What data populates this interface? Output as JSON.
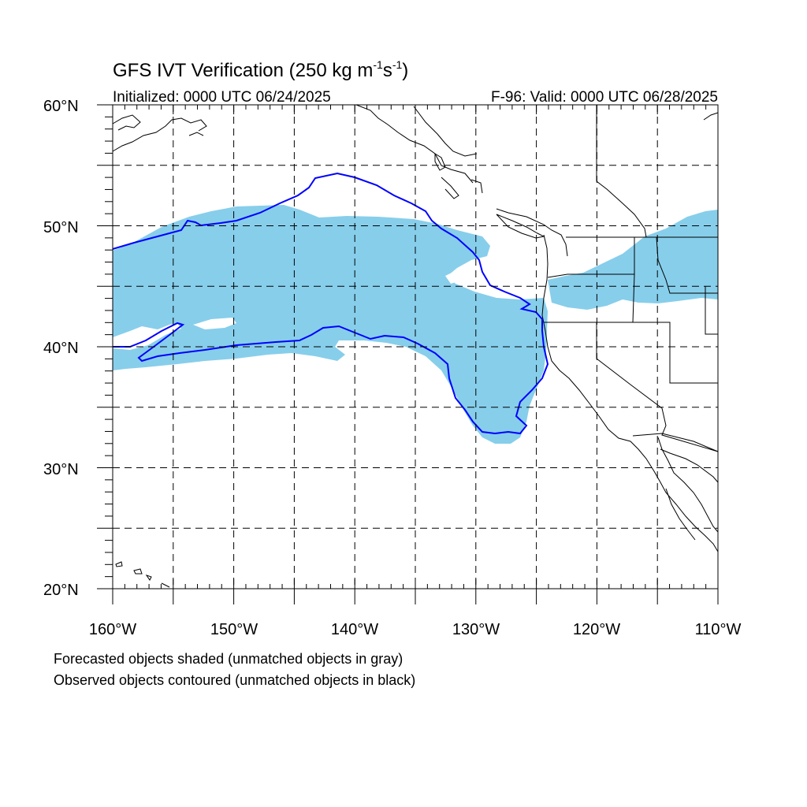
{
  "title": "GFS IVT Verification (250 kg m",
  "title_sup1": "-1",
  "title_mid": "s",
  "title_sup2": "-1",
  "title_end": ")",
  "init_label": "Initialized: 0000 UTC 06/24/2025",
  "valid_label": "F-96: Valid: 0000 UTC 06/28/2025",
  "lat_labels": [
    "60°N",
    "50°N",
    "40°N",
    "30°N",
    "20°N"
  ],
  "lon_labels": [
    "160°W",
    "150°W",
    "140°W",
    "130°W",
    "120°W",
    "110°W"
  ],
  "footnote_1": "Forecasted objects shaded (unmatched objects in gray)",
  "footnote_2": "Observed objects contoured (unmatched objects in black)",
  "colors": {
    "forecast_fill": "#87CEEB",
    "observed_contour": "#0000FF",
    "coastline": "#000000",
    "grid": "#000000"
  },
  "map": {
    "lon_range": [
      -160,
      -110
    ],
    "lat_range": [
      20,
      60
    ],
    "grid_spacing_deg": 5,
    "grid_style": "dashed"
  }
}
